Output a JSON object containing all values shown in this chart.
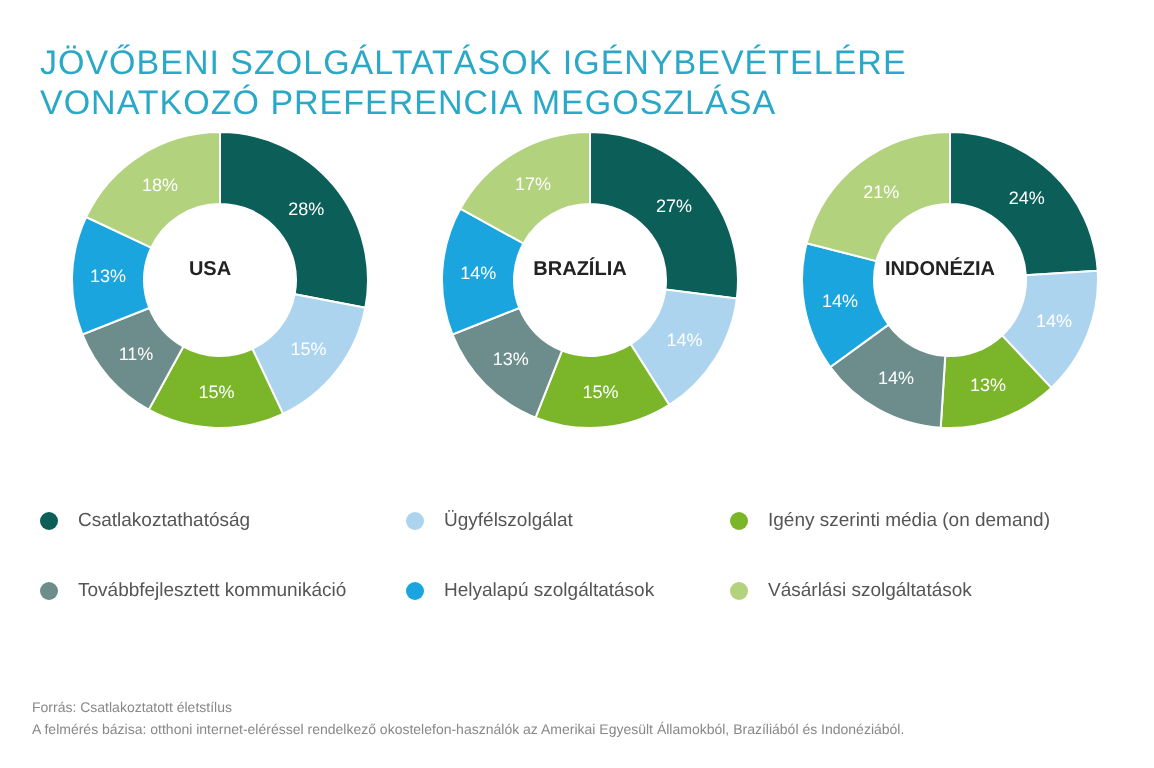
{
  "chart_data": [
    {
      "type": "donut",
      "title": "JÖVŐBENI SZOLGÁLTATÁSOK IGÉNYBEVÉTELÉRE VONATKOZÓ PREFERENCIA MEGOSZLÁSA",
      "subtitle": "USA",
      "categories": [
        "Csatlakoztathatóság",
        "Ügyfélszolgálat",
        "Igény szerinti média (on demand)",
        "Továbbfejlesztett kommunikáció",
        "Helyalapú szolgáltatások",
        "Vásárlási szolgáltatások"
      ],
      "values": [
        28,
        15,
        15,
        11,
        13,
        18
      ],
      "value_labels": [
        "28%",
        "15%",
        "15%",
        "11%",
        "13%",
        "18%"
      ],
      "colors": [
        "#0b5f58",
        "#add4ee",
        "#7bb52a",
        "#6c8d8c",
        "#1ba5de",
        "#b2d27d"
      ],
      "legend": "bottom",
      "annotations": [
        "Forrás: Csatlakoztatott életstílus",
        "A felmérés bázisa: otthoni internet-eléréssel rendelkező okostelefon-használók az Amerikai Egyesült Államokból, Brazíliából és Indonéziából."
      ]
    },
    {
      "type": "donut",
      "subtitle": "BRAZÍLIA",
      "categories": [
        null,
        null,
        null,
        null,
        null,
        null
      ],
      "values": [
        27,
        14,
        15,
        13,
        14,
        17
      ],
      "value_labels": [
        "27%",
        "14%",
        "15%",
        "13%",
        "14%",
        "17%"
      ],
      "colors": [
        "#0b5f58",
        "#add4ee",
        "#7bb52a",
        "#6c8d8c",
        "#1ba5de",
        "#b2d27d"
      ]
    },
    {
      "type": "donut",
      "subtitle": "INDONÉZIA",
      "categories": [
        null,
        null,
        null,
        null,
        null,
        null
      ],
      "values": [
        24,
        14,
        13,
        14,
        14,
        21
      ],
      "value_labels": [
        "24%",
        "14%",
        "13%",
        "14%",
        "14%",
        "21%"
      ],
      "colors": [
        "#0b5f58",
        "#add4ee",
        "#7bb52a",
        "#6c8d8c",
        "#1ba5de",
        "#b2d27d"
      ]
    }
  ]
}
